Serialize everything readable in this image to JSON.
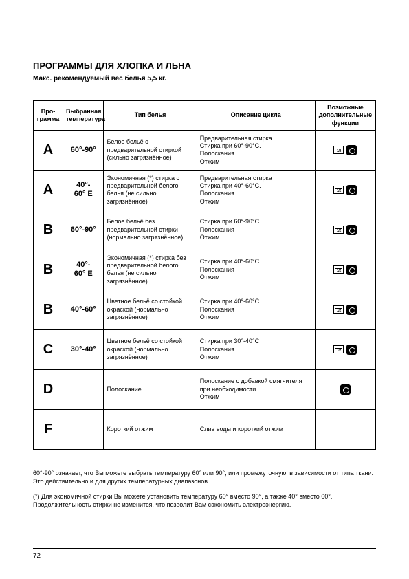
{
  "title": "ПРОГРАММЫ ДЛЯ ХЛОПКА И ЛЬНА",
  "subtitle": "Макс. рекомендуемый вес белья 5,5 кг.",
  "headers": {
    "program": "Про-\nграмма",
    "temp": "Выбранная\nтемпература",
    "type": "Тип белья",
    "cycle": "Описание цикла",
    "functions": "Возможные\nдополнительные\nфункции"
  },
  "rows": [
    {
      "prog": "A",
      "temp": "60°-90°",
      "type": "Белое бельё с предварительной стиркой (сильно загрязнённое)",
      "cycle": "Предварительная стирка\nСтирка при 60°-90°C.\nПолоскания\nОтжим",
      "icons": [
        "wash",
        "dot"
      ]
    },
    {
      "prog": "A",
      "temp": "40°-\n60° E",
      "type": "Экономичная (*) стирка с предварительной белого белья (не сильно загрязнённое)",
      "cycle": "Предварительная стирка\nСтирка при 40°-60°C.\nПолоскания\nОтжим",
      "icons": [
        "wash",
        "dot"
      ]
    },
    {
      "prog": "B",
      "temp": "60°-90°",
      "type": "Белое бельё без предварительной стирки (нормально загрязнённое)",
      "cycle": "Стирка при 60°-90°C\nПолоскания\nОтжим",
      "icons": [
        "wash",
        "dot"
      ]
    },
    {
      "prog": "B",
      "temp": "40°-\n60° E",
      "type": "Экономичная (*) стирка без предварительной белого белья (не сильно загрязнённое)",
      "cycle": "Стирка при 40°-60°C\nПолоскания\nОтжим",
      "icons": [
        "wash",
        "dot"
      ]
    },
    {
      "prog": "B",
      "temp": "40°-60°",
      "type": "Цветное бельё со стойкой окраской (нормально загрязнённое)",
      "cycle": "Стирка при 40°-60°C\nПолоскания\nОтжим",
      "icons": [
        "wash",
        "dot"
      ]
    },
    {
      "prog": "C",
      "temp": "30°-40°",
      "type": "Цветное бельё со стойкой окраской (нормально загрязнённое)",
      "cycle": "Стирка при 30°-40°C\nПолоскания\nОтжим",
      "icons": [
        "wash",
        "dot"
      ]
    },
    {
      "prog": "D",
      "temp": "",
      "type": "Полоскание",
      "cycle": "Полоскание с добавкой смягчителя при необходимости\nОтжим",
      "icons": [
        "dot"
      ]
    },
    {
      "prog": "F",
      "temp": "",
      "type": "Короткий отжим",
      "cycle": "Слив воды и короткий отжим",
      "icons": []
    }
  ],
  "footnote1": "60°-90° означает, что Вы можете выбрать температуру 60° или 90°, или промежуточную, в зависимости от типа ткани. Это действительно и для других температурных диапазонов.",
  "footnote2": "(*) Для экономичной стирки Вы можете установить температуру 60° вместо 90°, а также 40° вместо 60°. Продолжительность стирки не изменится, что позволит Вам сэкономить электроэнергию.",
  "pagenum": "72",
  "colors": {
    "text": "#000000",
    "bg": "#ffffff"
  }
}
